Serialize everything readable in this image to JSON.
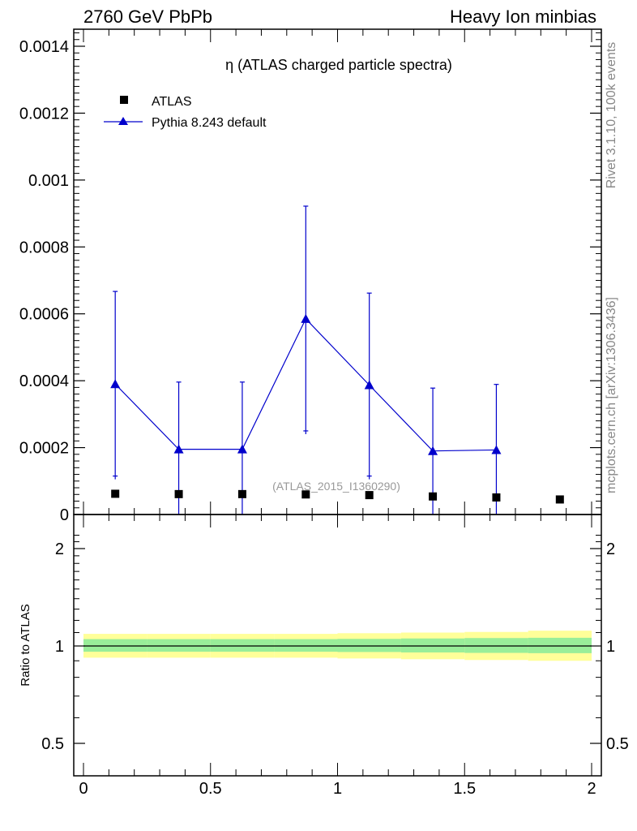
{
  "header": {
    "left": "2760 GeV PbPb",
    "right": "Heavy Ion minbias"
  },
  "side_labels": {
    "rivet": "Rivet 3.1.10,  100k events",
    "mcplots": "mcplots.cern.ch [arXiv:1306.3436]"
  },
  "chart_data": [
    {
      "type": "scatter",
      "title": "η (ATLAS charged particle spectra)",
      "watermark": "(ATLAS_2015_I1360290)",
      "xlim": [
        0,
        2
      ],
      "ylim": [
        0,
        0.00145
      ],
      "yticks": [
        "0",
        "0.0002",
        "0.0004",
        "0.0006",
        "0.0008",
        "0.001",
        "0.0012",
        "0.0014"
      ],
      "legend_placement": "top-left",
      "series": [
        {
          "name": "ATLAS",
          "style": "markers",
          "marker": "square",
          "color": "#000000",
          "x": [
            0.125,
            0.375,
            0.625,
            0.875,
            1.125,
            1.375,
            1.625,
            1.875
          ],
          "y": [
            6.2e-05,
            6.1e-05,
            6.1e-05,
            6e-05,
            5.8e-05,
            5.4e-05,
            5.1e-05,
            4.5e-05
          ]
        },
        {
          "name": "Pythia 8.243 default",
          "style": "line-markers",
          "marker": "triangle",
          "color": "#0000cc",
          "x": [
            0.125,
            0.375,
            0.625,
            0.875,
            1.125,
            1.375,
            1.625
          ],
          "y": [
            0.00039,
            0.000195,
            0.000195,
            0.000585,
            0.000387,
            0.00019,
            0.000193
          ],
          "err_low": [
            0.000275,
            0.000195,
            0.000195,
            0.000335,
            0.000272,
            0.00019,
            0.000193
          ],
          "err_high": [
            0.000277,
            0.000201,
            0.000201,
            0.000337,
            0.000275,
            0.000188,
            0.000196
          ]
        }
      ]
    },
    {
      "type": "line",
      "ylabel": "Ratio to ATLAS",
      "xlim": [
        0,
        2
      ],
      "ylim": [
        0.42,
        2.25
      ],
      "xticks": [
        "0",
        "0.5",
        "1",
        "1.5",
        "2"
      ],
      "yticks": [
        "0.5",
        "1",
        "2"
      ],
      "reference": 1,
      "bands": {
        "edges": [
          0,
          0.25,
          0.5,
          0.75,
          1.0,
          1.25,
          1.5,
          1.75,
          2.0
        ],
        "yellow_low": [
          0.92,
          0.92,
          0.92,
          0.92,
          0.915,
          0.91,
          0.905,
          0.9
        ],
        "yellow_high": [
          1.09,
          1.09,
          1.09,
          1.09,
          1.095,
          1.1,
          1.105,
          1.115
        ],
        "green_low": [
          0.96,
          0.96,
          0.96,
          0.96,
          0.958,
          0.955,
          0.952,
          0.95
        ],
        "green_high": [
          1.05,
          1.05,
          1.05,
          1.05,
          1.052,
          1.055,
          1.058,
          1.06
        ],
        "yellow_color": "#ffff99",
        "green_color": "#99ee99"
      }
    }
  ]
}
